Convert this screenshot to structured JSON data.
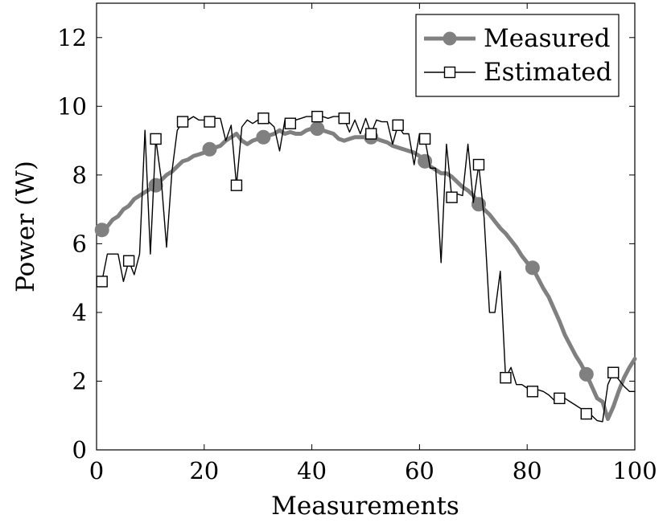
{
  "chart_data": {
    "type": "line",
    "title": "",
    "xlabel": "Measurements",
    "ylabel": "Power (W)",
    "xlim": [
      0,
      100
    ],
    "ylim": [
      0,
      13
    ],
    "xticks": [
      0,
      20,
      40,
      60,
      80,
      100
    ],
    "yticks": [
      0,
      2,
      4,
      6,
      8,
      10,
      12
    ],
    "grid": false,
    "legend_position": "top-right",
    "series": [
      {
        "name": "Measured",
        "color": "#808080",
        "marker": "filled-circle",
        "mark_every": [
          1,
          11,
          21,
          31,
          41,
          51,
          61,
          71,
          81,
          91
        ],
        "x": [
          1,
          2,
          3,
          4,
          5,
          6,
          7,
          8,
          9,
          10,
          11,
          12,
          13,
          14,
          15,
          16,
          17,
          18,
          19,
          20,
          21,
          22,
          23,
          24,
          25,
          26,
          27,
          28,
          29,
          30,
          31,
          32,
          33,
          34,
          35,
          36,
          37,
          38,
          39,
          40,
          41,
          42,
          43,
          44,
          45,
          46,
          47,
          48,
          49,
          50,
          51,
          52,
          53,
          54,
          55,
          56,
          57,
          58,
          59,
          60,
          61,
          62,
          63,
          64,
          65,
          66,
          67,
          68,
          69,
          70,
          71,
          72,
          73,
          74,
          75,
          76,
          77,
          78,
          79,
          80,
          81,
          82,
          83,
          84,
          85,
          86,
          87,
          88,
          89,
          90,
          91,
          92,
          93,
          94,
          95,
          96,
          97,
          98,
          99,
          100
        ],
        "values": [
          6.4,
          6.5,
          6.7,
          6.8,
          7.0,
          7.1,
          7.3,
          7.4,
          7.5,
          7.6,
          7.7,
          7.85,
          8.0,
          8.1,
          8.25,
          8.4,
          8.45,
          8.55,
          8.6,
          8.65,
          8.75,
          8.8,
          8.85,
          9.0,
          9.1,
          9.2,
          9.0,
          8.9,
          9.0,
          9.05,
          9.1,
          9.15,
          9.2,
          9.3,
          9.2,
          9.25,
          9.2,
          9.2,
          9.3,
          9.35,
          9.35,
          9.3,
          9.25,
          9.2,
          9.05,
          9.0,
          9.05,
          9.1,
          9.1,
          9.1,
          9.1,
          9.05,
          9.0,
          8.95,
          8.85,
          8.8,
          8.75,
          8.7,
          8.65,
          8.55,
          8.4,
          8.25,
          8.15,
          8.05,
          8.05,
          7.95,
          7.8,
          7.65,
          7.55,
          7.4,
          7.15,
          7.0,
          6.85,
          6.65,
          6.45,
          6.3,
          6.1,
          5.9,
          5.65,
          5.45,
          5.3,
          5.0,
          4.7,
          4.45,
          4.1,
          3.75,
          3.35,
          3.05,
          2.75,
          2.5,
          2.2,
          1.85,
          1.5,
          1.4,
          0.9,
          1.25,
          1.7,
          2.1,
          2.4,
          2.65
        ]
      },
      {
        "name": "Estimated",
        "color": "#000000",
        "marker": "open-square",
        "mark_every": [
          1,
          6,
          11,
          16,
          21,
          26,
          31,
          36,
          41,
          46,
          51,
          56,
          61,
          66,
          71,
          76,
          81,
          86,
          91,
          96
        ],
        "x": [
          1,
          2,
          3,
          4,
          5,
          6,
          7,
          8,
          9,
          10,
          11,
          12,
          13,
          14,
          15,
          16,
          17,
          18,
          19,
          20,
          21,
          22,
          23,
          24,
          25,
          26,
          27,
          28,
          29,
          30,
          31,
          32,
          33,
          34,
          35,
          36,
          37,
          38,
          39,
          40,
          41,
          42,
          43,
          44,
          45,
          46,
          47,
          48,
          49,
          50,
          51,
          52,
          53,
          54,
          55,
          56,
          57,
          58,
          59,
          60,
          61,
          62,
          63,
          64,
          65,
          66,
          67,
          68,
          69,
          70,
          71,
          72,
          73,
          74,
          75,
          76,
          77,
          78,
          79,
          80,
          81,
          82,
          83,
          84,
          85,
          86,
          87,
          88,
          89,
          90,
          91,
          92,
          93,
          94,
          95,
          96,
          97,
          98,
          99,
          100
        ],
        "values": [
          4.9,
          5.7,
          5.7,
          5.7,
          4.9,
          5.5,
          5.1,
          5.7,
          9.3,
          5.7,
          9.05,
          7.9,
          5.9,
          8.1,
          9.3,
          9.55,
          9.6,
          9.7,
          9.6,
          9.6,
          9.55,
          9.65,
          9.65,
          9.0,
          9.45,
          7.7,
          9.4,
          9.6,
          9.5,
          9.6,
          9.65,
          9.55,
          9.4,
          8.7,
          9.6,
          9.5,
          9.6,
          9.65,
          9.7,
          9.7,
          9.7,
          9.7,
          9.65,
          9.7,
          9.7,
          9.65,
          9.25,
          9.6,
          9.2,
          9.65,
          9.2,
          9.6,
          9.55,
          9.55,
          8.9,
          9.45,
          9.2,
          9.2,
          8.3,
          9.2,
          9.05,
          8.2,
          8.2,
          5.45,
          8.9,
          7.35,
          7.45,
          7.4,
          8.9,
          7.2,
          8.3,
          6.75,
          4.0,
          4.0,
          5.2,
          2.1,
          2.4,
          1.9,
          1.9,
          1.8,
          1.7,
          1.75,
          1.7,
          1.6,
          1.45,
          1.5,
          1.5,
          1.4,
          1.3,
          1.2,
          1.05,
          1.0,
          0.85,
          0.82,
          1.9,
          2.25,
          2.05,
          1.85,
          1.7,
          1.7
        ]
      }
    ]
  }
}
